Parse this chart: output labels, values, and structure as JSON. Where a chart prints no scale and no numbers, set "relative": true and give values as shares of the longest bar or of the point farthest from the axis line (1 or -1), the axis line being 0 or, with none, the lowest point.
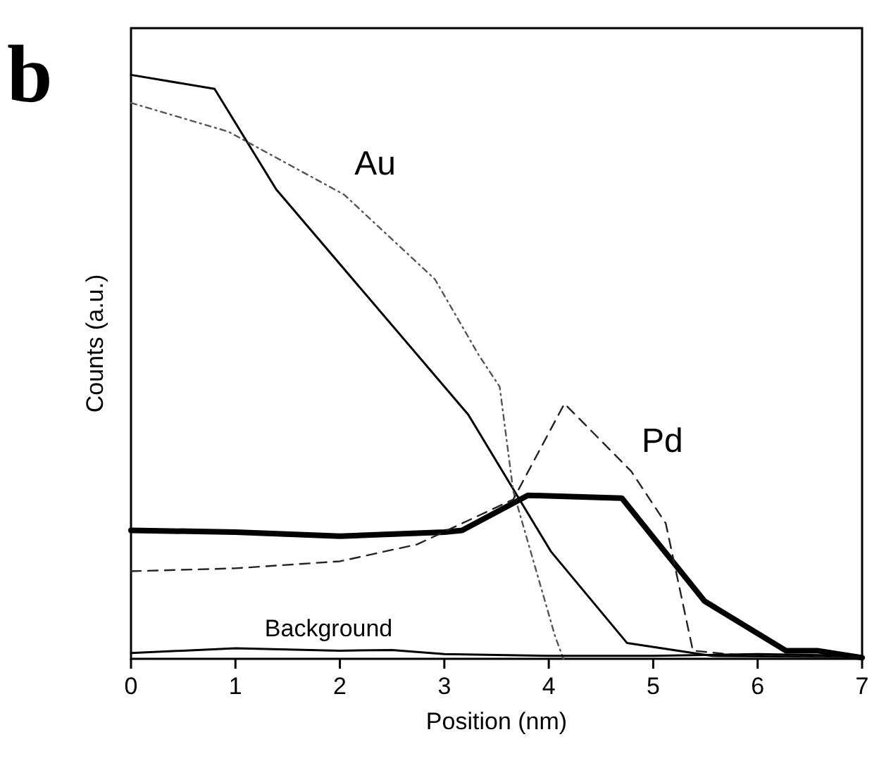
{
  "chart_data": {
    "type": "line",
    "title": "b",
    "xlabel": "Position (nm)",
    "ylabel": "Counts (a.u.)",
    "relative": true,
    "xlim": [
      0,
      7
    ],
    "xticks": [
      0,
      1,
      2,
      3,
      4,
      5,
      6,
      7
    ],
    "grid": false,
    "marker": "none",
    "series": [
      {
        "color": "#000000",
        "line_style": "solid",
        "x": [
          0,
          0.8,
          1.39,
          3.23,
          4.02,
          4.75,
          5.56,
          7
        ],
        "values": [
          1.0,
          0.976,
          0.804,
          0.418,
          0.184,
          0.027,
          0.005,
          0.003
        ]
      },
      {
        "color": "#555555",
        "line_style": "dotted",
        "x": [
          0,
          0.93,
          2.04,
          2.91,
          3.33,
          3.53,
          3.66,
          4.06,
          4.14
        ],
        "values": [
          0.952,
          0.903,
          0.795,
          0.65,
          0.52,
          0.466,
          0.287,
          0.039,
          0.0
        ]
      },
      {
        "color": "#000000",
        "line_style": "solid",
        "x": [
          0,
          1,
          2,
          3,
          3.17,
          3.8,
          4.7,
          5.49,
          6.27,
          6.57,
          7
        ],
        "values": [
          0.22,
          0.217,
          0.21,
          0.217,
          0.22,
          0.28,
          0.275,
          0.099,
          0.014,
          0.014,
          0.002
        ]
      },
      {
        "color": "#222222",
        "line_style": "dashed",
        "x": [
          0,
          1,
          2,
          2.74,
          3.66,
          4.15,
          4.79,
          5.12,
          5.38,
          5.78,
          7
        ],
        "values": [
          0.15,
          0.155,
          0.167,
          0.196,
          0.273,
          0.437,
          0.321,
          0.232,
          0.014,
          0.007,
          0.004
        ]
      },
      {
        "color": "#000000",
        "line_style": "solid",
        "x": [
          0,
          1,
          2,
          2.5,
          3,
          4,
          5,
          6,
          7
        ],
        "values": [
          0.01,
          0.018,
          0.014,
          0.015,
          0.008,
          0.005,
          0.005,
          0.008,
          0.005
        ]
      }
    ],
    "annotations": [
      {
        "text": "Au",
        "x": 2.04,
        "y": 0.795
      },
      {
        "text": "Pd",
        "x": 4.79,
        "y": 0.321
      },
      {
        "text": "Background",
        "x": 2,
        "y": 0.014
      }
    ]
  }
}
